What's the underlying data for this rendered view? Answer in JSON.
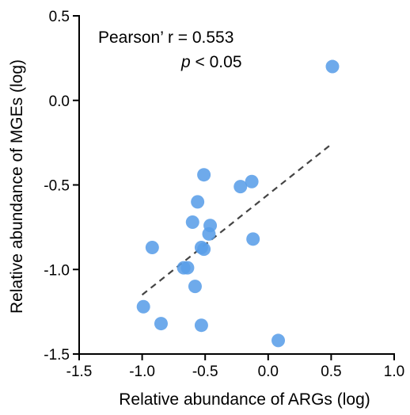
{
  "chart_data": {
    "type": "scatter",
    "xlabel": "Relative abundance of ARGs (log)",
    "ylabel": "Relative abundance of MGEs (log)",
    "xlim": [
      -1.5,
      1.0
    ],
    "ylim": [
      -1.5,
      0.5
    ],
    "xticks": [
      -1.5,
      -1.0,
      -0.5,
      0.0,
      0.5,
      1.0
    ],
    "yticks": [
      -1.5,
      -1.0,
      -0.5,
      0.0,
      0.5
    ],
    "xtick_labels": [
      "-1.5",
      "-1.0",
      "-0.5",
      "0.0",
      "0.5",
      "1.0"
    ],
    "ytick_labels": [
      "-1.5",
      "-1.0",
      "-0.5",
      "0.0",
      "0.5"
    ],
    "grid": false,
    "point_color": "#5a9ee8",
    "annotation": {
      "line1": "Pearson’ r = 0.553",
      "p_symbol": "p",
      "p_rest": " < 0.05"
    },
    "trendline": {
      "x": [
        -1.0,
        0.5
      ],
      "y": [
        -1.15,
        -0.26
      ],
      "style": "dashed",
      "color": "#444444"
    },
    "points": [
      {
        "x": 0.51,
        "y": 0.2
      },
      {
        "x": -0.51,
        "y": -0.44
      },
      {
        "x": -0.22,
        "y": -0.51
      },
      {
        "x": -0.13,
        "y": -0.48
      },
      {
        "x": -0.56,
        "y": -0.6
      },
      {
        "x": -0.6,
        "y": -0.72
      },
      {
        "x": -0.46,
        "y": -0.74
      },
      {
        "x": -0.47,
        "y": -0.79
      },
      {
        "x": -0.12,
        "y": -0.82
      },
      {
        "x": -0.92,
        "y": -0.87
      },
      {
        "x": -0.53,
        "y": -0.87
      },
      {
        "x": -0.51,
        "y": -0.88
      },
      {
        "x": -0.67,
        "y": -0.99
      },
      {
        "x": -0.64,
        "y": -0.99
      },
      {
        "x": -0.58,
        "y": -1.1
      },
      {
        "x": -0.99,
        "y": -1.22
      },
      {
        "x": -0.85,
        "y": -1.32
      },
      {
        "x": -0.53,
        "y": -1.33
      },
      {
        "x": 0.08,
        "y": -1.42
      }
    ]
  }
}
